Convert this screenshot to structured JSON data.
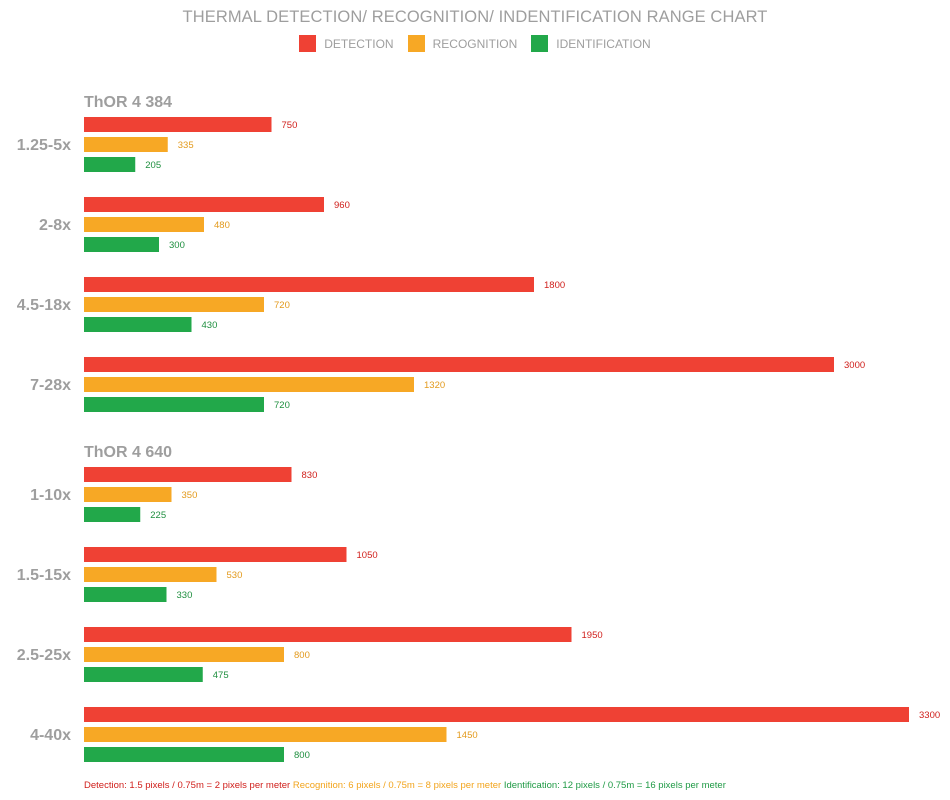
{
  "chart_data": {
    "type": "bar",
    "orientation": "horizontal",
    "title": "THERMAL DETECTION/ RECOGNITION/ INDENTIFICATION RANGE CHART",
    "legend_position": "top-center",
    "grid": false,
    "xlim": [
      0,
      3300
    ],
    "series": [
      {
        "name": "DETECTION",
        "color": "#ef4134"
      },
      {
        "name": "RECOGNITION",
        "color": "#f7a825"
      },
      {
        "name": "IDENTIFICATION",
        "color": "#22a84a"
      }
    ],
    "groups": [
      {
        "title": "ThOR 4 384",
        "categories": [
          {
            "label": "1.25-5x",
            "values": [
              750,
              335,
              205
            ]
          },
          {
            "label": "2-8x",
            "values": [
              960,
              480,
              300
            ]
          },
          {
            "label": "4.5-18x",
            "values": [
              1800,
              720,
              430
            ]
          },
          {
            "label": "7-28x",
            "values": [
              3000,
              1320,
              720
            ]
          }
        ]
      },
      {
        "title": "ThOR 4 640",
        "categories": [
          {
            "label": "1-10x",
            "values": [
              830,
              350,
              225
            ]
          },
          {
            "label": "1.5-15x",
            "values": [
              1050,
              530,
              330
            ]
          },
          {
            "label": "2.5-25x",
            "values": [
              1950,
              800,
              475
            ]
          },
          {
            "label": "4-40x",
            "values": [
              3300,
              1450,
              800
            ]
          }
        ]
      }
    ],
    "footnotes": [
      {
        "text": "Detection: 1.5 pixels / 0.75m = 2 pixels per meter",
        "color": "#d0201c"
      },
      {
        "text": "Recognition: 6 pixels / 0.75m = 8 pixels per meter",
        "color": "#f2a41c"
      },
      {
        "text": "Identification: 12 pixels / 0.75m = 16 pixels per meter",
        "color": "#1f9a45"
      }
    ]
  }
}
